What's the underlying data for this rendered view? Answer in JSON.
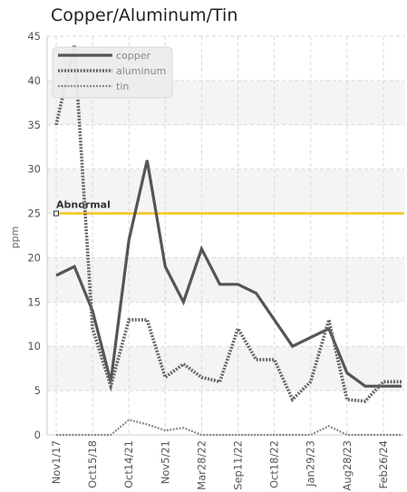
{
  "chart_data": {
    "type": "line",
    "title": "Copper/Aluminum/Tin",
    "ylabel": "ppm",
    "xlabel": "",
    "ylim": [
      0,
      45
    ],
    "yticks": [
      0,
      5,
      10,
      15,
      20,
      25,
      30,
      35,
      40,
      45
    ],
    "grid": true,
    "legend_position": "top-left",
    "xtick_labels": [
      {
        "index": 0,
        "label": "Nov1/17"
      },
      {
        "index": 2,
        "label": "Oct15/18"
      },
      {
        "index": 4,
        "label": "Oct14/21"
      },
      {
        "index": 6,
        "label": "Nov5/21"
      },
      {
        "index": 8,
        "label": "Mar28/22"
      },
      {
        "index": 10,
        "label": "Sep11/22"
      },
      {
        "index": 12,
        "label": "Oct18/22"
      },
      {
        "index": 14,
        "label": "Jan29/23"
      },
      {
        "index": 16,
        "label": "Aug28/23"
      },
      {
        "index": 18,
        "label": "Feb26/24"
      }
    ],
    "series": [
      {
        "name": "copper",
        "color": "#555555",
        "style": "solid",
        "values": [
          18,
          19,
          14,
          6,
          22,
          31,
          19,
          15,
          21,
          17,
          17,
          16,
          13,
          10,
          11,
          12,
          7,
          5.5,
          5.5,
          5.5
        ]
      },
      {
        "name": "aluminum",
        "color": "#666666",
        "style": "dotted",
        "values": [
          35,
          44,
          12,
          5.5,
          13,
          13,
          6.5,
          8,
          6.5,
          6,
          12,
          8.5,
          8.5,
          4,
          6,
          13,
          4,
          3.8,
          6,
          6
        ]
      },
      {
        "name": "tin",
        "color": "#888888",
        "style": "dotted-thin",
        "values": [
          0,
          0,
          0,
          0,
          1.7,
          1.2,
          0.5,
          0.8,
          0,
          0,
          0,
          0,
          0,
          0,
          0,
          1,
          0,
          0,
          0,
          0
        ]
      }
    ],
    "threshold": {
      "label": "Abnormal",
      "value": 25,
      "color": "#f5c518"
    }
  }
}
